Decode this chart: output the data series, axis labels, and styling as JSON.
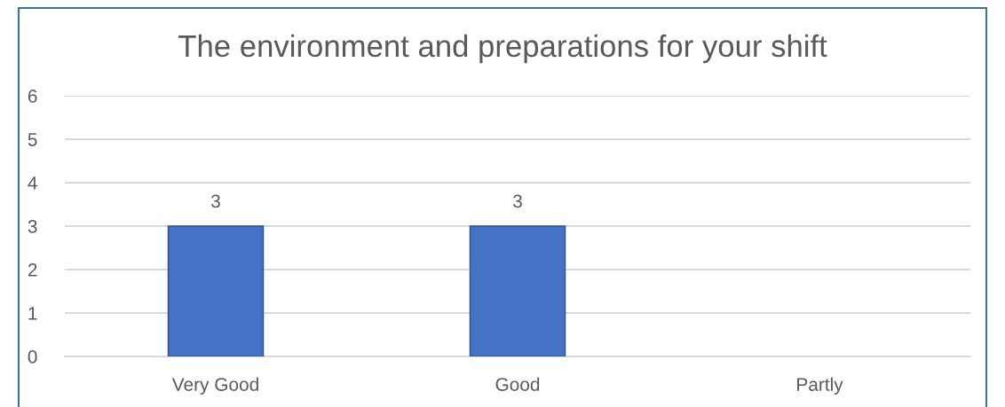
{
  "chart_data": {
    "type": "bar",
    "title": "The environment and preparations for your shift",
    "categories": [
      "Very Good",
      "Good",
      "Partly"
    ],
    "values": [
      3,
      3,
      null
    ],
    "color": "#4472c4",
    "ylim": [
      0,
      6
    ],
    "yticks": [
      0,
      1,
      2,
      3,
      4,
      5,
      6
    ],
    "grid": "y",
    "data_labels": true
  }
}
